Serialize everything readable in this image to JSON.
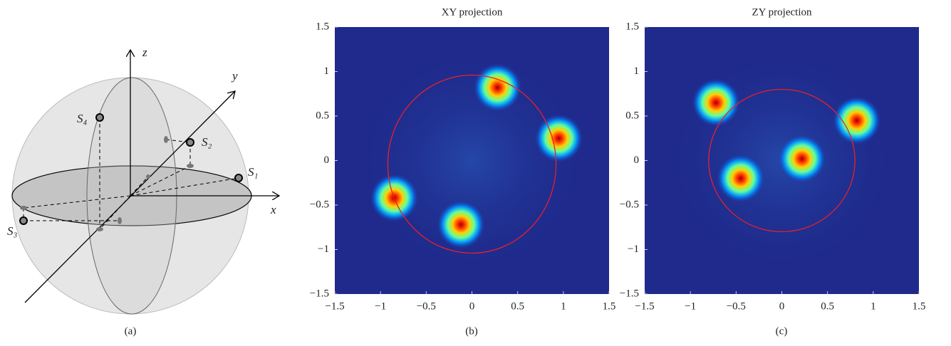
{
  "figure": {
    "panel_a": {
      "axis_labels": {
        "z": "z",
        "y": "y",
        "x": "x"
      },
      "states": [
        "S₁",
        "S₂",
        "S₃",
        "S₄"
      ]
    },
    "captions": [
      "(a)",
      "(b)",
      "(c)"
    ]
  },
  "chart_data": [
    {
      "type": "heatmap",
      "title": "XY projection",
      "xlim": [
        -1.5,
        1.5
      ],
      "ylim": [
        -1.5,
        1.5
      ],
      "xticks": [
        {
          "value": -1.5,
          "label": "−1.5"
        },
        {
          "value": -1,
          "label": "−1"
        },
        {
          "value": -0.5,
          "label": "−0.5"
        },
        0,
        0.5,
        1,
        1.5
      ],
      "yticks": [
        {
          "value": -1.5,
          "label": "−1.5"
        },
        {
          "value": -1,
          "label": "−1"
        },
        {
          "value": -0.5,
          "label": "−0.5"
        },
        0,
        0.5,
        1,
        1.5
      ],
      "clusters": {
        "x": [
          0.28,
          0.95,
          -0.85,
          -0.12
        ],
        "y": [
          0.82,
          0.25,
          -0.42,
          -0.72
        ]
      },
      "circle": {
        "center": [
          0,
          -0.04
        ],
        "radius": [
          0.92,
          1.0
        ],
        "color": "#e8202a"
      }
    },
    {
      "type": "heatmap",
      "title": "ZY projection",
      "xlim": [
        -1.5,
        1.5
      ],
      "ylim": [
        -1.5,
        1.5
      ],
      "xticks": [
        {
          "value": -1.5,
          "label": "−1.5"
        },
        {
          "value": -1,
          "label": "−1"
        },
        {
          "value": -0.5,
          "label": "−0.5"
        },
        0,
        0.5,
        1,
        1.5
      ],
      "yticks": [
        {
          "value": -1.5,
          "label": "−1.5"
        },
        {
          "value": -1,
          "label": "−1"
        },
        {
          "value": -0.5,
          "label": "−0.5"
        },
        0,
        0.5,
        1,
        1.5
      ],
      "clusters": {
        "x": [
          -0.72,
          0.82,
          0.22,
          -0.45
        ],
        "y": [
          0.65,
          0.45,
          0.02,
          -0.2
        ]
      },
      "circle": {
        "center": [
          0,
          0
        ],
        "radius": [
          0.8,
          0.8
        ],
        "color": "#e8202a"
      }
    }
  ]
}
